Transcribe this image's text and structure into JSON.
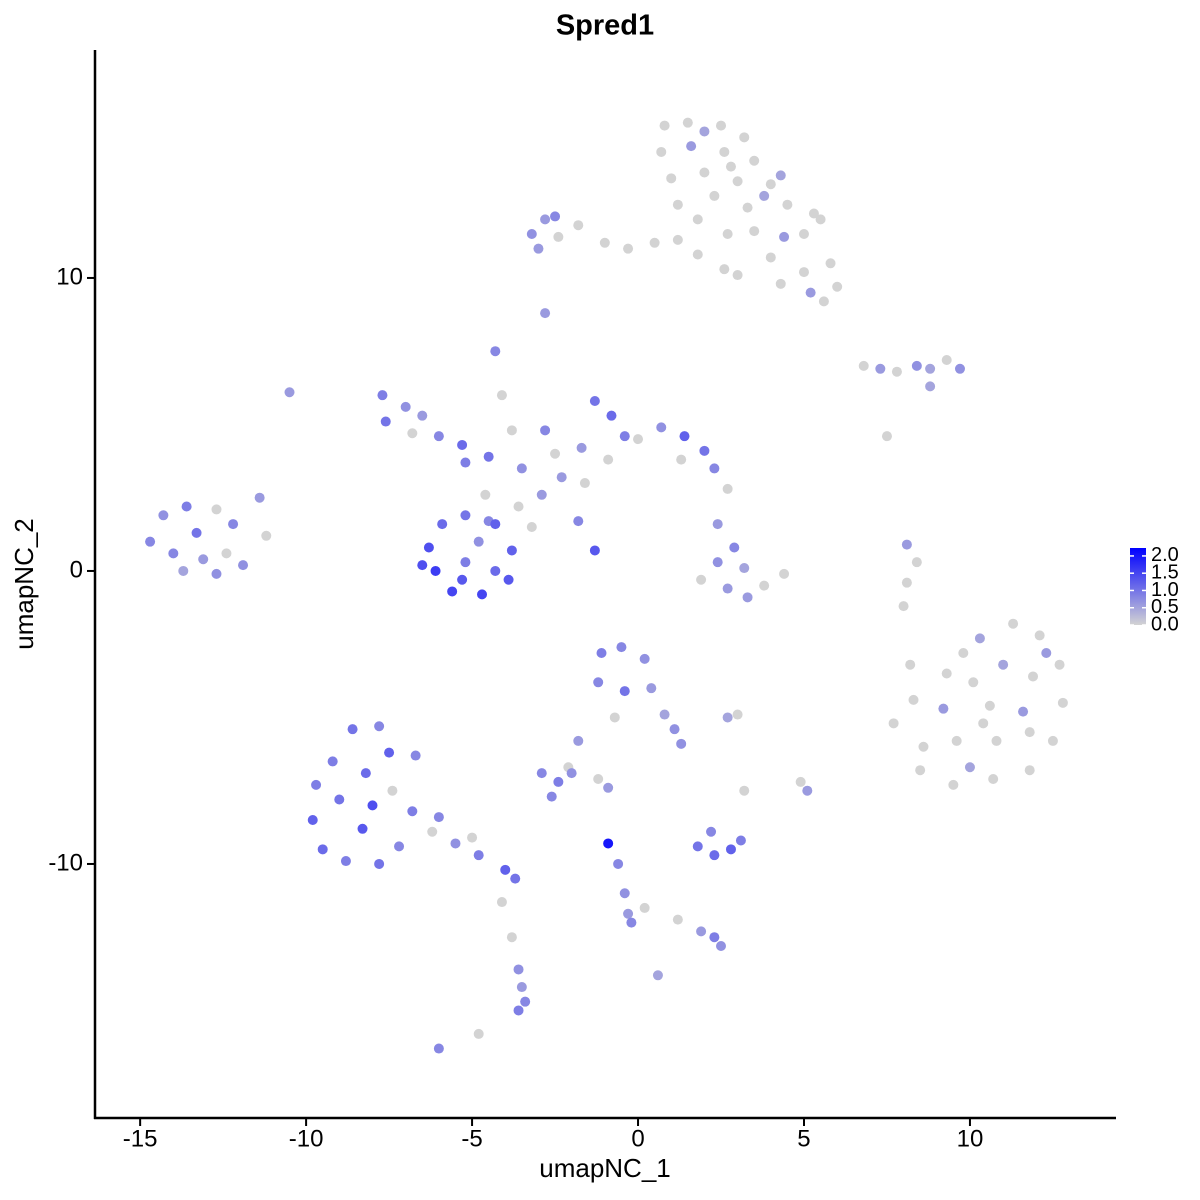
{
  "chart_data": {
    "type": "scatter",
    "title": "Spred1",
    "xlabel": "umapNC_1",
    "ylabel": "umapNC_2",
    "xlim": [
      -16.36,
      14.37
    ],
    "ylim": [
      -18.67,
      17.78
    ],
    "xticks": [
      -15,
      -10,
      -5,
      0,
      5,
      10
    ],
    "yticks": [
      -10,
      0,
      10
    ],
    "low_color": "#d3d3d3",
    "high_color": "#0000ff",
    "colorlim": [
      0,
      2.23
    ],
    "colorticks": [
      {
        "value": 0,
        "label": "0.0"
      },
      0.5,
      {
        "value": 1,
        "label": "1.0"
      },
      1.5,
      {
        "value": 2,
        "label": "2.0"
      }
    ],
    "points": [
      [
        0.8,
        15.2,
        0
      ],
      [
        1.5,
        15.3,
        0
      ],
      [
        2.5,
        15.2,
        0
      ],
      [
        3.2,
        14.8,
        0
      ],
      [
        0.7,
        14.3,
        0
      ],
      [
        1.6,
        14.5,
        0.6
      ],
      [
        2.6,
        14.3,
        0
      ],
      [
        3.5,
        14,
        0
      ],
      [
        1,
        13.4,
        0
      ],
      [
        2,
        13.6,
        0
      ],
      [
        3,
        13.3,
        0
      ],
      [
        4,
        13.2,
        0
      ],
      [
        4.3,
        13.5,
        0.5
      ],
      [
        1.2,
        12.5,
        0
      ],
      [
        2.3,
        12.8,
        0
      ],
      [
        3.3,
        12.4,
        0
      ],
      [
        4.5,
        12.5,
        0
      ],
      [
        5.3,
        12.2,
        0
      ],
      [
        5.5,
        12,
        0
      ],
      [
        3.5,
        11.6,
        0
      ],
      [
        4.4,
        11.4,
        0.6
      ],
      [
        5,
        11.5,
        0
      ],
      [
        2.7,
        11.5,
        0
      ],
      [
        4,
        10.7,
        0
      ],
      [
        5,
        10.2,
        0
      ],
      [
        5.8,
        10.5,
        0
      ],
      [
        6,
        9.7,
        0
      ],
      [
        5.2,
        9.5,
        0.6
      ],
      [
        4.3,
        9.8,
        0
      ],
      [
        2,
        15,
        0.5
      ],
      [
        2.8,
        13.8,
        0
      ],
      [
        1.8,
        12,
        0
      ],
      [
        3.8,
        12.8,
        0.5
      ],
      [
        5.6,
        9.2,
        0
      ],
      [
        -3.2,
        11.5,
        0.7
      ],
      [
        -2.8,
        12,
        0.6
      ],
      [
        -2.4,
        11.4,
        0
      ],
      [
        -1.8,
        11.8,
        0
      ],
      [
        -1,
        11.2,
        0
      ],
      [
        -0.3,
        11,
        0
      ],
      [
        0.5,
        11.2,
        0
      ],
      [
        1.2,
        11.3,
        0
      ],
      [
        1.8,
        10.8,
        0
      ],
      [
        2.6,
        10.3,
        0
      ],
      [
        3,
        10.1,
        0
      ],
      [
        -2.5,
        12.1,
        0.8
      ],
      [
        -3,
        11,
        0.6
      ],
      [
        -2.8,
        8.8,
        0.6
      ],
      [
        6.8,
        7,
        0
      ],
      [
        7.3,
        6.9,
        0.6
      ],
      [
        7.8,
        6.8,
        0
      ],
      [
        8.4,
        7,
        0.7
      ],
      [
        8.8,
        6.9,
        0.5
      ],
      [
        9.3,
        7.2,
        0
      ],
      [
        9.7,
        6.9,
        0.7
      ],
      [
        8.8,
        6.3,
        0.5
      ],
      [
        7.5,
        4.6,
        0
      ],
      [
        -7.7,
        6,
        0.9
      ],
      [
        -7,
        5.6,
        0.7
      ],
      [
        -7.6,
        5.1,
        1
      ],
      [
        -6.8,
        4.7,
        0
      ],
      [
        -6,
        4.6,
        0.8
      ],
      [
        -5.3,
        4.3,
        1.1
      ],
      [
        -5.2,
        3.7,
        0.9
      ],
      [
        -6.5,
        5.3,
        0.6
      ],
      [
        -4.3,
        7.5,
        0.8
      ],
      [
        -4.1,
        6,
        0
      ],
      [
        -3.8,
        4.8,
        0
      ],
      [
        -4.5,
        3.9,
        1
      ],
      [
        -3.5,
        3.5,
        0.7
      ],
      [
        -4.6,
        2.6,
        0
      ],
      [
        -4.5,
        1.7,
        0.8
      ],
      [
        -3.6,
        2.2,
        0
      ],
      [
        -2.8,
        4.8,
        0.8
      ],
      [
        -2.5,
        4,
        0
      ],
      [
        -1.7,
        4.2,
        0.6
      ],
      [
        -1.3,
        5.8,
        1
      ],
      [
        -0.8,
        5.3,
        1.1
      ],
      [
        -0.4,
        4.6,
        0.9
      ],
      [
        0,
        4.5,
        0
      ],
      [
        0.7,
        4.9,
        0.7
      ],
      [
        1.4,
        4.6,
        1.2
      ],
      [
        2,
        4.1,
        1
      ],
      [
        2.3,
        3.5,
        0.8
      ],
      [
        1.3,
        3.8,
        0
      ],
      [
        -0.9,
        3.8,
        0
      ],
      [
        -1.6,
        3,
        0
      ],
      [
        -2.3,
        3.2,
        0.6
      ],
      [
        -2.9,
        2.6,
        0.6
      ],
      [
        -1.8,
        1.7,
        0.8
      ],
      [
        -1.3,
        0.7,
        1.3
      ],
      [
        -3.2,
        1.5,
        0
      ],
      [
        2.7,
        2.8,
        0
      ],
      [
        -6.3,
        0.8,
        1.4
      ],
      [
        -6.1,
        0,
        1.6
      ],
      [
        -5.6,
        -0.7,
        1.5
      ],
      [
        -4.7,
        -0.8,
        1.5
      ],
      [
        -3.9,
        -0.3,
        1.3
      ],
      [
        -3.8,
        0.7,
        1.2
      ],
      [
        -4.3,
        1.6,
        1.2
      ],
      [
        -5.2,
        1.9,
        1
      ],
      [
        -5.9,
        1.6,
        1.1
      ],
      [
        -5.2,
        0.3,
        0.9
      ],
      [
        -4.8,
        1,
        0.7
      ],
      [
        -5.3,
        -0.3,
        1.3
      ],
      [
        -6.5,
        0.2,
        1.4
      ],
      [
        -4.3,
        0,
        1.1
      ],
      [
        -14.7,
        1,
        0.8
      ],
      [
        -14.3,
        1.9,
        0.7
      ],
      [
        -13.6,
        2.2,
        0.9
      ],
      [
        -12.7,
        2.1,
        0
      ],
      [
        -12.2,
        1.6,
        0.8
      ],
      [
        -13.3,
        1.3,
        1
      ],
      [
        -14,
        0.6,
        0.8
      ],
      [
        -13.1,
        0.4,
        0.6
      ],
      [
        -12.4,
        0.6,
        0
      ],
      [
        -11.9,
        0.2,
        0.7
      ],
      [
        -11.2,
        1.2,
        0
      ],
      [
        -11.4,
        2.5,
        0.6
      ],
      [
        -12.7,
        -0.1,
        0.7
      ],
      [
        -13.7,
        0,
        0.5
      ],
      [
        2.4,
        1.6,
        0.6
      ],
      [
        2.9,
        0.8,
        0.8
      ],
      [
        2.4,
        0.3,
        0.7
      ],
      [
        3.2,
        0.1,
        0.5
      ],
      [
        1.9,
        -0.3,
        0
      ],
      [
        2.7,
        -0.6,
        0.6
      ],
      [
        3.8,
        -0.5,
        0
      ],
      [
        4.4,
        -0.1,
        0
      ],
      [
        3.3,
        -0.9,
        0.6
      ],
      [
        8.1,
        0.9,
        0.6
      ],
      [
        8.4,
        0.3,
        0
      ],
      [
        8.1,
        -0.4,
        0
      ],
      [
        8,
        -1.2,
        0
      ],
      [
        9.3,
        -3.5,
        0
      ],
      [
        10.3,
        -2.3,
        0.5
      ],
      [
        11.3,
        -1.8,
        0
      ],
      [
        12.1,
        -2.2,
        0
      ],
      [
        12.7,
        -3.2,
        0
      ],
      [
        12.8,
        -4.5,
        0
      ],
      [
        12.5,
        -5.8,
        0
      ],
      [
        11.8,
        -6.8,
        0
      ],
      [
        10.7,
        -7.1,
        0
      ],
      [
        9.5,
        -7.3,
        0
      ],
      [
        8.5,
        -6.8,
        0
      ],
      [
        7.7,
        -5.2,
        0
      ],
      [
        8.3,
        -4.4,
        0
      ],
      [
        9.2,
        -4.7,
        0.6
      ],
      [
        10.1,
        -3.8,
        0
      ],
      [
        11,
        -3.2,
        0.5
      ],
      [
        11.9,
        -3.6,
        0
      ],
      [
        11.6,
        -4.8,
        0.6
      ],
      [
        10.6,
        -4.6,
        0
      ],
      [
        9.6,
        -5.8,
        0
      ],
      [
        10.8,
        -5.8,
        0
      ],
      [
        11.8,
        -5.5,
        0
      ],
      [
        8.6,
        -6,
        0
      ],
      [
        10,
        -6.7,
        0.5
      ],
      [
        9.8,
        -2.8,
        0
      ],
      [
        12.3,
        -2.8,
        0.6
      ],
      [
        10.4,
        -5.2,
        0
      ],
      [
        8.2,
        -3.2,
        0
      ],
      [
        -9.8,
        -8.5,
        1.2
      ],
      [
        -9.5,
        -9.5,
        1.1
      ],
      [
        -8.8,
        -9.9,
        0.9
      ],
      [
        -7.8,
        -10,
        1
      ],
      [
        -7.2,
        -9.4,
        0.8
      ],
      [
        -8.3,
        -8.8,
        1.3
      ],
      [
        -9,
        -7.8,
        1
      ],
      [
        -9.2,
        -6.5,
        0.9
      ],
      [
        -8.6,
        -5.4,
        1
      ],
      [
        -7.8,
        -5.3,
        0.8
      ],
      [
        -7.5,
        -6.2,
        1.2
      ],
      [
        -8.2,
        -6.9,
        1.1
      ],
      [
        -7.4,
        -7.5,
        0
      ],
      [
        -6.8,
        -8.2,
        0.9
      ],
      [
        -6.7,
        -6.3,
        0.8
      ],
      [
        -8,
        -8,
        1.4
      ],
      [
        -6.2,
        -8.9,
        0
      ],
      [
        -5.5,
        -9.3,
        0.7
      ],
      [
        -4.8,
        -9.7,
        0.9
      ],
      [
        -4,
        -10.2,
        1.2
      ],
      [
        -3.7,
        -10.5,
        1
      ],
      [
        -6,
        -8.4,
        0.8
      ],
      [
        -5,
        -9.1,
        0
      ],
      [
        -9.7,
        -7.3,
        0.9
      ],
      [
        -1.1,
        -2.8,
        0.9
      ],
      [
        -0.5,
        -2.6,
        0.8
      ],
      [
        0.2,
        -3,
        0.7
      ],
      [
        -1.2,
        -3.8,
        0.8
      ],
      [
        -0.4,
        -4.1,
        1
      ],
      [
        0.4,
        -4,
        0.6
      ],
      [
        0.8,
        -4.9,
        0.5
      ],
      [
        1.1,
        -5.4,
        0.7
      ],
      [
        1.3,
        -5.9,
        0.7
      ],
      [
        -0.7,
        -5,
        0
      ],
      [
        -1.8,
        -5.8,
        0.6
      ],
      [
        -2.1,
        -6.7,
        0
      ],
      [
        -2.9,
        -6.9,
        0.8
      ],
      [
        -2.4,
        -7.2,
        0.9
      ],
      [
        -2,
        -6.9,
        0.7
      ],
      [
        -2.6,
        -7.7,
        0.8
      ],
      [
        -1.2,
        -7.1,
        0
      ],
      [
        -0.9,
        -7.4,
        0.6
      ],
      [
        1.8,
        -9.4,
        1
      ],
      [
        2.3,
        -9.7,
        1.1
      ],
      [
        2.8,
        -9.5,
        1.2
      ],
      [
        3.1,
        -9.2,
        0.9
      ],
      [
        2.2,
        -8.9,
        0.8
      ],
      [
        3.2,
        -7.5,
        0
      ],
      [
        2.7,
        -5,
        0.5
      ],
      [
        3,
        -4.9,
        0
      ],
      [
        -0.9,
        -9.3,
        2
      ],
      [
        -0.6,
        -10,
        0.8
      ],
      [
        -0.4,
        -11,
        0.7
      ],
      [
        -0.3,
        -11.7,
        0.6
      ],
      [
        0.2,
        -11.5,
        0
      ],
      [
        1.2,
        -11.9,
        0
      ],
      [
        1.9,
        -12.3,
        0.6
      ],
      [
        2.3,
        -12.5,
        0.9
      ],
      [
        2.5,
        -12.8,
        0.7
      ],
      [
        -0.2,
        -12,
        0.8
      ],
      [
        0.6,
        -13.8,
        0.5
      ],
      [
        4.9,
        -7.2,
        0
      ],
      [
        5.1,
        -7.5,
        0.6
      ],
      [
        -3.6,
        -13.6,
        0.7
      ],
      [
        -3.5,
        -14.2,
        0.6
      ],
      [
        -3.4,
        -14.7,
        0.8
      ],
      [
        -3.6,
        -15,
        0.9
      ],
      [
        -3.8,
        -12.5,
        0
      ],
      [
        -4.1,
        -11.3,
        0
      ],
      [
        -6,
        -16.3,
        0.8
      ],
      [
        -4.8,
        -15.8,
        0
      ],
      [
        -10.5,
        6.1,
        0.6
      ]
    ]
  }
}
